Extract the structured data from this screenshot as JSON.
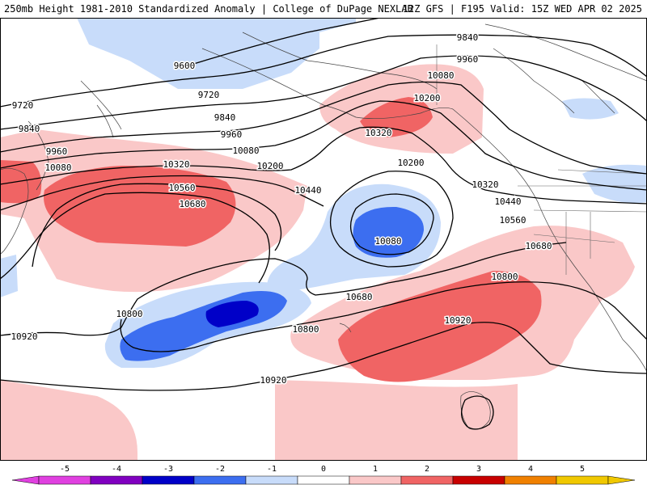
{
  "header": {
    "left_title": "250mb Height 1981-2010 Standardized Anomaly | College of DuPage NEXLAB",
    "right_title": "12Z GFS | F195 Valid: 15Z WED APR 02 2025"
  },
  "colors": {
    "neg5": "#e040e0",
    "neg4": "#8000c0",
    "neg3": "#0000c8",
    "neg2": "#3c6ef0",
    "neg1": "#c8dcfa",
    "zero": "#ffffff",
    "pos1": "#fac8c8",
    "pos2": "#f06464",
    "pos3": "#c80000",
    "pos4": "#f08000",
    "pos5": "#f0c800"
  },
  "contour_labels": [
    "9600",
    "9720",
    "9720",
    "9840",
    "9840",
    "9840",
    "9960",
    "9960",
    "9960",
    "10080",
    "10080",
    "10080",
    "10080",
    "10200",
    "10200",
    "10200",
    "10320",
    "10320",
    "10320",
    "10440",
    "10440",
    "10560",
    "10560",
    "10680",
    "10680",
    "10680",
    "10800",
    "10800",
    "10800",
    "10920",
    "10920",
    "10920"
  ],
  "colorbar": {
    "ticks": [
      "-5",
      "-4",
      "-3",
      "-2",
      "-1",
      "0",
      "1",
      "2",
      "3",
      "4",
      "5"
    ]
  }
}
